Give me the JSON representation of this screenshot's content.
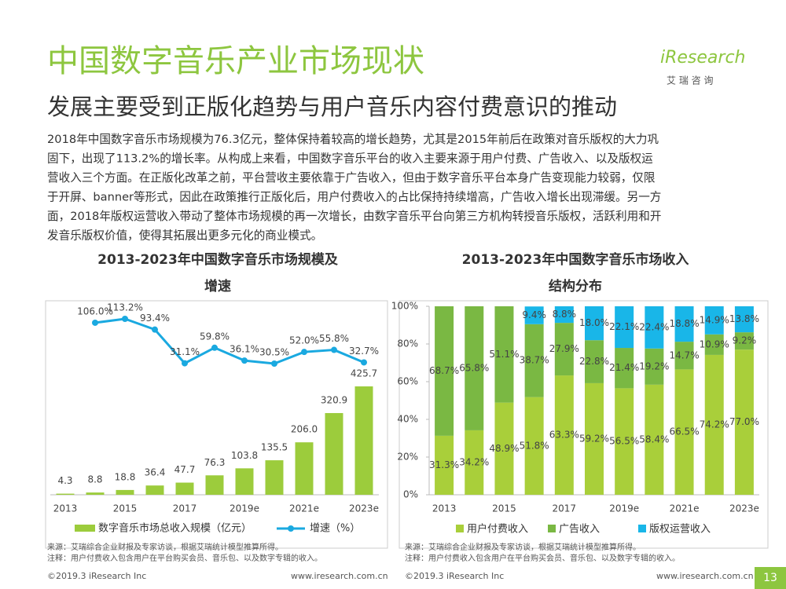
{
  "page": {
    "title": "中国数字音乐产业市场现状",
    "subtitle": "发展主要受到正版化趋势与用户音乐内容付费意识的推动",
    "paragraph": [
      "2018年中国数字音乐市场规模为76.3亿元，整体保持着较高的增长趋势，尤其是2015年前后在政策对音乐版权的大力巩",
      "固下，出现了113.2%的增长率。从构成上来看，中国数字音乐平台的收入主要来源于用户付费、广告收入、以及版权运",
      "营收入三个方面。在正版化改革之前，平台营收主要依靠于广告收入，但由于数字音乐平台本身广告变现能力较弱，仅限",
      "于开屏、banner等形式，因此在政策推行正版化后，用户付费收入的占比保持持续增高，广告收入增长出现滞缓。另一方",
      "面，2018年版权运营收入带动了整体市场规模的再一次增长，由数字音乐平台向第三方机构转授音乐版权，活跃利用和开",
      "发音乐版权价值，使得其拓展出更多元化的商业模式。"
    ],
    "logo": "iResearch",
    "logo_sub": "艾 瑞 咨 询",
    "page_number": "13",
    "copyright": "©2019.3 iResearch Inc",
    "website": "www.iresearch.com.cn"
  },
  "chart_data": [
    {
      "type": "combo",
      "title": [
        "2013-2023年中国数字音乐市场规模及",
        "增速"
      ],
      "categories": [
        "2013",
        null,
        "2015",
        null,
        "2017",
        null,
        "2019e",
        null,
        "2021e",
        null,
        "2023e"
      ],
      "series": [
        {
          "name": "数字音乐市场总收入规模（亿元）",
          "type": "bar",
          "color": "#9ccc3c",
          "values": [
            4.3,
            8.8,
            18.8,
            36.4,
            47.7,
            76.3,
            103.8,
            135.5,
            206.0,
            320.9,
            425.7
          ],
          "value_labels": [
            "4.3",
            "8.8",
            "18.8",
            "36.4",
            "47.7",
            "76.3",
            "103.8",
            "135.5",
            "206.0",
            "320.9",
            "425.7"
          ]
        },
        {
          "name": "增速（%）",
          "type": "line",
          "axis": "y2",
          "color": "#1aa9e0",
          "values": [
            null,
            106.0,
            113.2,
            93.4,
            31.1,
            59.8,
            36.1,
            30.5,
            52.0,
            55.8,
            32.7
          ],
          "value_labels": [
            null,
            "106.0%",
            "113.2%",
            "93.4%",
            "31.1%",
            "59.8%",
            "36.1%",
            "30.5%",
            "52.0%",
            "55.8%",
            "32.7%"
          ]
        }
      ],
      "notes": [
        "来源：艾瑞综合企业财报及专家访谈，根据艾瑞统计模型推算所得。",
        "注释：用户付费收入包含用户在平台购买会员、音乐包、以及数字专辑的收入。"
      ]
    },
    {
      "type": "stacked_bar",
      "title": [
        "2013-2023年中国数字音乐市场收入",
        "结构分布"
      ],
      "categories": [
        "2013",
        null,
        "2015",
        null,
        "2017",
        null,
        "2019e",
        null,
        "2021e",
        null,
        "2023e"
      ],
      "ylim": [
        0,
        100
      ],
      "yticks": [
        {
          "value": 0,
          "label": "0%"
        },
        {
          "value": 20,
          "label": "20%"
        },
        {
          "value": 40,
          "label": "40%"
        },
        {
          "value": 60,
          "label": "60%"
        },
        {
          "value": 80,
          "label": "80%"
        },
        {
          "value": 100,
          "label": "100%"
        }
      ],
      "series": [
        {
          "name": "用户付费收入",
          "color": "#a9cf3a",
          "values": [
            31.3,
            34.2,
            48.9,
            51.8,
            63.3,
            59.2,
            56.5,
            58.4,
            66.5,
            74.2,
            77.0
          ],
          "value_labels": [
            "31.3%",
            "34.2%",
            "48.9%",
            "51.8%",
            "63.3%",
            "59.2%",
            "56.5%",
            "58.4%",
            "66.5%",
            "74.2%",
            "77.0%"
          ]
        },
        {
          "name": "广告收入",
          "color": "#7ab843",
          "values": [
            68.7,
            65.8,
            51.1,
            38.7,
            27.9,
            22.8,
            21.4,
            19.2,
            14.7,
            10.9,
            9.2
          ],
          "value_labels": [
            "68.7%",
            "65.8%",
            "51.1%",
            "38.7%",
            "27.9%",
            "22.8%",
            "21.4%",
            "19.2%",
            "14.7%",
            "10.9%",
            "9.2%"
          ]
        },
        {
          "name": "版权运营收入",
          "color": "#19b6e8",
          "values": [
            null,
            null,
            null,
            9.4,
            8.8,
            18.0,
            22.1,
            22.4,
            18.8,
            14.9,
            13.8
          ],
          "value_labels": [
            null,
            null,
            null,
            "9.4%",
            "8.8%",
            "18.0%",
            "22.1%",
            "22.4%",
            "18.8%",
            "14.9%",
            "13.8%"
          ]
        }
      ],
      "notes": [
        "来源：艾瑞综合企业财报及专家访谈，根据艾瑞统计模型推算所得。",
        "注释：用户付费收入包含用户在平台购买会员、音乐包、以及数字专辑的收入。"
      ]
    }
  ]
}
